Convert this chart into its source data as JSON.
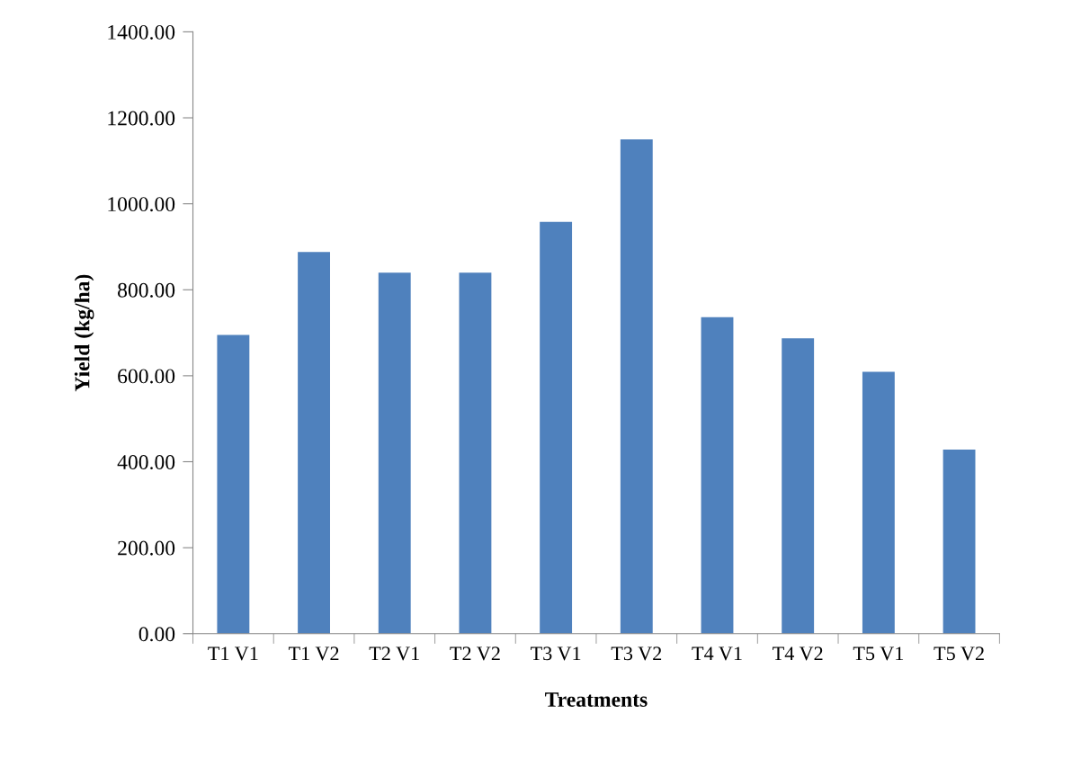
{
  "chart_data": {
    "type": "bar",
    "xlabel": "Treatments",
    "ylabel": "Yield (kg/ha)",
    "categories": [
      "T1 V1",
      "T1 V2",
      "T2 V1",
      "T2 V2",
      "T3 V1",
      "T3 V2",
      "T4 V1",
      "T4 V2",
      "T5 V1",
      "T5 V2"
    ],
    "values": [
      695,
      888,
      840,
      840,
      958,
      1150,
      736,
      687,
      609,
      428
    ],
    "color": "#4f81bd",
    "ylim": [
      0,
      1400
    ],
    "yticks": [
      {
        "value": 0,
        "label": "0.00"
      },
      {
        "value": 200,
        "label": "200.00"
      },
      {
        "value": 400,
        "label": "400.00"
      },
      {
        "value": 600,
        "label": "600.00"
      },
      {
        "value": 800,
        "label": "800.00"
      },
      {
        "value": 1000,
        "label": "1000.00"
      },
      {
        "value": 1200,
        "label": "1200.00"
      },
      {
        "value": 1400,
        "label": "1400.00"
      }
    ],
    "grid": false,
    "legend": false
  }
}
